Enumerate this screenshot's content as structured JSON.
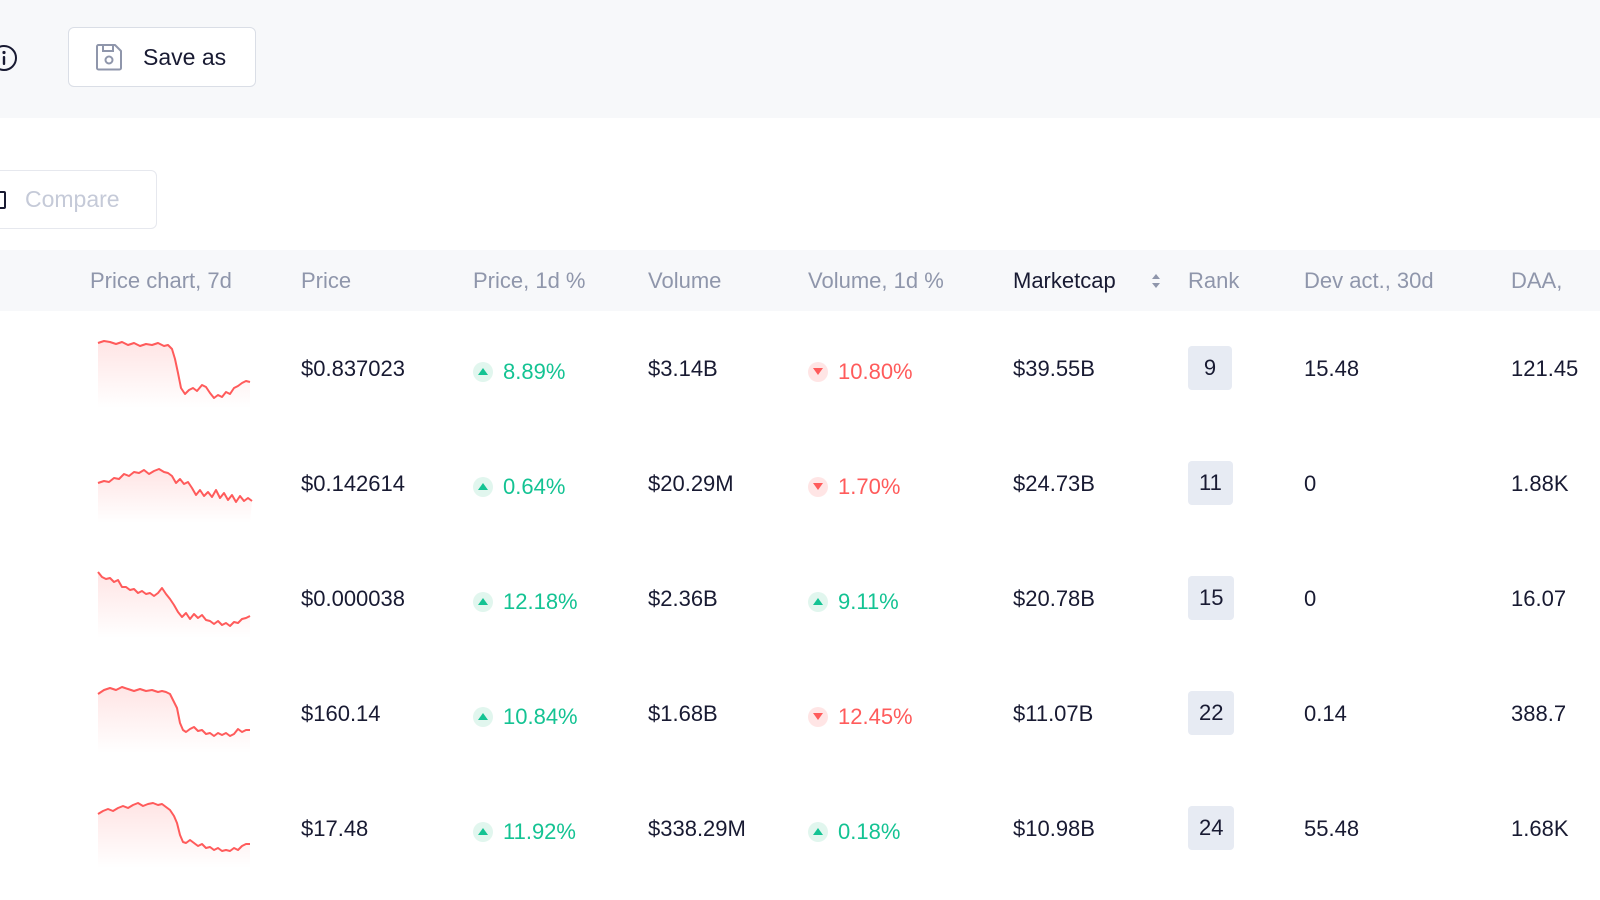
{
  "toolbar": {
    "save_label": "Save as",
    "compare_label": "Compare"
  },
  "columns": {
    "price_chart": "Price chart, 7d",
    "price": "Price",
    "price_1d": "Price, 1d %",
    "volume": "Volume",
    "volume_1d": "Volume, 1d %",
    "marketcap": "Marketcap",
    "rank": "Rank",
    "dev_act": "Dev act., 30d",
    "daa": "DAA,"
  },
  "colors": {
    "up": "#14c393",
    "down": "#ff5b5b",
    "sparkline": "#ff5b5b"
  },
  "rows": [
    {
      "price": "$0.837023",
      "price_1d": "8.89%",
      "price_1d_dir": "up",
      "volume": "$3.14B",
      "volume_1d": "10.80%",
      "volume_1d_dir": "down",
      "marketcap": "$39.55B",
      "rank": "9",
      "dev_act": "15.48",
      "daa": "121.45"
    },
    {
      "price": "$0.142614",
      "price_1d": "0.64%",
      "price_1d_dir": "up",
      "volume": "$20.29M",
      "volume_1d": "1.70%",
      "volume_1d_dir": "down",
      "marketcap": "$24.73B",
      "rank": "11",
      "dev_act": "0",
      "daa": "1.88K"
    },
    {
      "price": "$0.000038",
      "price_1d": "12.18%",
      "price_1d_dir": "up",
      "volume": "$2.36B",
      "volume_1d": "9.11%",
      "volume_1d_dir": "up",
      "marketcap": "$20.78B",
      "rank": "15",
      "dev_act": "0",
      "daa": "16.07"
    },
    {
      "price": "$160.14",
      "price_1d": "10.84%",
      "price_1d_dir": "up",
      "volume": "$1.68B",
      "volume_1d": "12.45%",
      "volume_1d_dir": "down",
      "marketcap": "$11.07B",
      "rank": "22",
      "dev_act": "0.14",
      "daa": "388.7"
    },
    {
      "price": "$17.48",
      "price_1d": "11.92%",
      "price_1d_dir": "up",
      "volume": "$338.29M",
      "volume_1d": "0.18%",
      "volume_1d_dir": "up",
      "marketcap": "$10.98B",
      "rank": "24",
      "dev_act": "55.48",
      "daa": "1.68K"
    }
  ]
}
